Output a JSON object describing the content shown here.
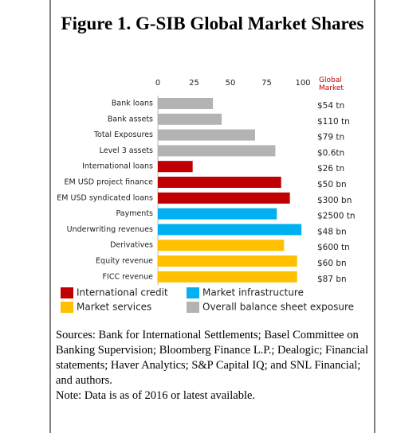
{
  "chart_data": {
    "type": "barh",
    "title": "Figure 1. G-SIB Global Market Shares",
    "categories": [
      "Bank loans",
      "Bank assets",
      "Total Exposures",
      "Level 3 assets",
      "International loans",
      "EM USD project finance",
      "EM USD syndicated loans",
      "Payments",
      "Underwriting revenues",
      "Derivatives",
      "Equity revenue",
      "FICC revenue"
    ],
    "series": [
      {
        "name": "International credit",
        "color": "#c00000",
        "values": [
          null,
          null,
          null,
          null,
          24,
          85,
          91,
          null,
          null,
          null,
          null,
          null
        ]
      },
      {
        "name": "Market infrastructure",
        "color": "#00b0f0",
        "values": [
          null,
          null,
          null,
          null,
          null,
          null,
          null,
          82,
          99,
          null,
          null,
          null
        ]
      },
      {
        "name": "Market services",
        "color": "#ffc000",
        "values": [
          null,
          null,
          null,
          null,
          null,
          null,
          null,
          null,
          null,
          87,
          96,
          96
        ]
      },
      {
        "name": "Overall balance sheet exposure",
        "color": "#b3b3b3",
        "values": [
          38,
          44,
          67,
          81,
          null,
          null,
          null,
          null,
          null,
          null,
          null,
          null
        ]
      }
    ],
    "xlim": [
      0,
      100
    ],
    "xticks": [
      0,
      25,
      50,
      75,
      100
    ],
    "grid": false,
    "market_header": "Global Market",
    "market_header_color": "#c00000",
    "market_size": [
      "$54 tn",
      "$110 tn",
      "$79 tn",
      "$0.6tn",
      "$26 tn",
      "$50 bn",
      "$300 bn",
      "$2500 tn",
      "$48 bn",
      "$600 tn",
      "$60 bn",
      "$87 bn"
    ],
    "sources": "Sources: Bank for International Settlements; Basel Committee on Banking Supervision;  Bloomberg Finance L.P.; Dealogic;  Financial statements; Haver Analytics; S&P Capital IQ; and SNL Financial; and authors.",
    "note": "Note: Data is as of 2016 or latest available."
  }
}
